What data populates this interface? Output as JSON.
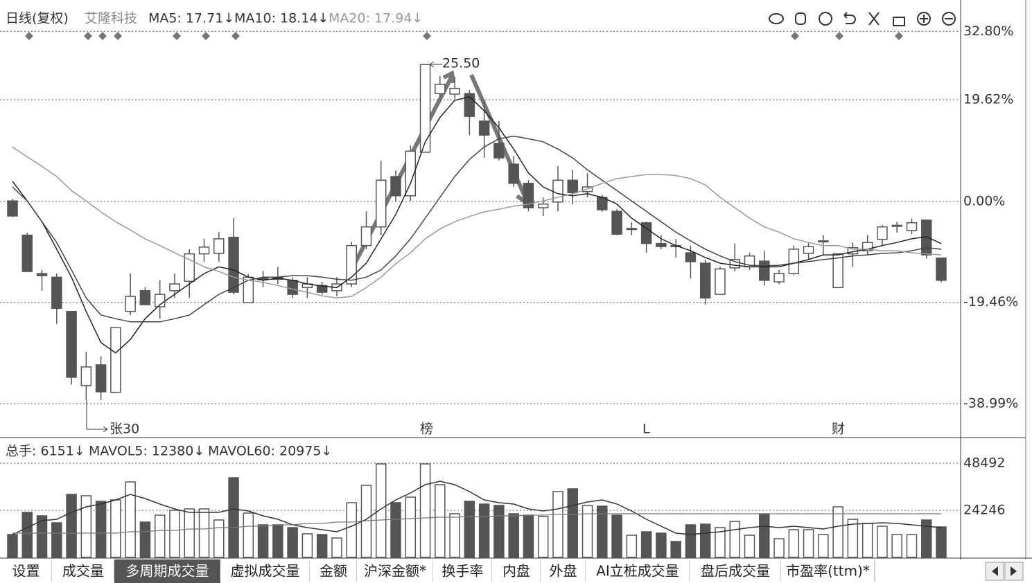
{
  "header": {
    "period": "日线(复权)",
    "stock": "艾隆科技",
    "ma5": "MA5: 17.71↓",
    "ma10": "MA10: 18.14↓",
    "ma20": "MA20: 17.94↓"
  },
  "price_axis": {
    "ylim": [
      -45.26,
      37.78
    ],
    "yticks": [
      {
        "value": 32.8,
        "label": "32.80%"
      },
      {
        "value": 19.62,
        "label": "19.62%"
      },
      {
        "value": 0,
        "label": "0.00%"
      },
      {
        "value": -19.46,
        "label": "-19.46%"
      },
      {
        "value": -38.99,
        "label": "-38.99%"
      }
    ]
  },
  "candles": {
    "open": [
      0.1,
      -6.5,
      -13.9,
      -14.6,
      -21.2,
      -35.5,
      -31.5,
      -36.8,
      -21.2,
      -17.2,
      -20.3,
      -17.2,
      -15.4,
      -10.1,
      -10,
      -6.9,
      -19.5,
      -14.8,
      -14.6,
      -15.2,
      -16.6,
      -16.2,
      -17.2,
      -15.9,
      -8.5,
      -4.9,
      4.8,
      1.1,
      9.5,
      20.8,
      20.7,
      20.8,
      15.5,
      11.2,
      7.2,
      3.5,
      -1.2,
      -0.1,
      4.1,
      1.9,
      0.8,
      -1.9,
      -5.3,
      -4.1,
      -8.1,
      -8.5,
      -9.9,
      -11.9,
      -17.9,
      -12.8,
      -12.6,
      -11.5,
      -15.5,
      -13.9,
      -10,
      -7.7,
      -16.6,
      -10.1,
      -9.5,
      -7.3,
      -4.7,
      -5.6,
      -3.6,
      -10.9
    ],
    "close": [
      -2.8,
      -13.5,
      -14.3,
      -20.6,
      -33.9,
      -31.9,
      -36.7,
      -24.3,
      -18.3,
      -19.9,
      -17.9,
      -15.9,
      -10.1,
      -8.8,
      -7.2,
      -17.5,
      -14.6,
      -15.1,
      -15,
      -17.9,
      -15.9,
      -17.5,
      -15.9,
      -8.5,
      -4.9,
      4.1,
      1.1,
      9.7,
      26.4,
      22.6,
      21.8,
      16.4,
      12.8,
      8.4,
      3.5,
      -1.2,
      -0.5,
      4.1,
      1.7,
      2.8,
      -1.6,
      -6.3,
      -5.2,
      -8.1,
      -8.7,
      -8.6,
      -11.6,
      -18.6,
      -13,
      -11.2,
      -10.5,
      -15.2,
      -13.9,
      -9.2,
      -8.7,
      -7.6,
      -10.1,
      -8.9,
      -7.9,
      -4.9,
      -4.6,
      -4.1,
      -10.3,
      -15.2
    ],
    "high": [
      0.5,
      -6,
      -13.2,
      -13.9,
      -21.2,
      -29,
      -29.9,
      -24.3,
      -13.9,
      -16.5,
      -15.2,
      -13.9,
      -9.2,
      -7.2,
      -5.9,
      -3.2,
      -14,
      -13.4,
      -12.6,
      -14.6,
      -14.6,
      -15.5,
      -14.6,
      -7.8,
      -1.9,
      7.9,
      6,
      10.8,
      26.4,
      24.2,
      24,
      21.5,
      19.5,
      15.5,
      8.8,
      4.1,
      0.8,
      6.8,
      6.1,
      5.5,
      1.3,
      -1.5,
      -4,
      -3.9,
      -6.5,
      -7.2,
      -8.5,
      -11.2,
      -12.6,
      -8.1,
      -9.9,
      -9.5,
      -13.2,
      -8.5,
      -7.9,
      -6.5,
      -10,
      -7.9,
      -6.5,
      -4.5,
      -3.9,
      -3.3,
      -3.6,
      -10.9
    ],
    "low": [
      -3,
      -13.5,
      -17.2,
      -23.6,
      -35.3,
      -38.3,
      -38.3,
      -36.8,
      -21.9,
      -20,
      -22.6,
      -18.6,
      -18.6,
      -11.6,
      -11.6,
      -17.9,
      -19.5,
      -16.5,
      -15.9,
      -18.6,
      -18.6,
      -18,
      -18.3,
      -16.5,
      -9.2,
      -6.5,
      0,
      0.1,
      9.5,
      20.2,
      19.8,
      12.8,
      8.4,
      7.9,
      2.8,
      -1.9,
      -2.8,
      -1.9,
      -0.5,
      0.8,
      -2,
      -6.5,
      -6.5,
      -9.9,
      -9.2,
      -10.8,
      -14.8,
      -19.9,
      -17.9,
      -13.5,
      -13.2,
      -16.2,
      -15.9,
      -14.2,
      -11.2,
      -10.3,
      -16.6,
      -12.6,
      -10.3,
      -8.5,
      -6,
      -6.3,
      -11,
      -15.6
    ]
  },
  "ma_lines": [
    {
      "color": "#222",
      "values": [
        3.9,
        0.1,
        -3.9,
        -9.2,
        -14.6,
        -21.2,
        -27.2,
        -29.2,
        -26.6,
        -22.6,
        -19.9,
        -17.9,
        -15.9,
        -13.9,
        -12.6,
        -13.2,
        -14.6,
        -15.2,
        -14.8,
        -15.2,
        -15.9,
        -16.3,
        -16.6,
        -14.6,
        -11.9,
        -7.2,
        -2.5,
        3.5,
        11.5,
        16.2,
        19.5,
        20.2,
        17.5,
        14.2,
        10.1,
        5.5,
        2.8,
        1.5,
        1.1,
        1.5,
        0.8,
        -0.5,
        -3.2,
        -5.2,
        -7.2,
        -8.5,
        -9.5,
        -10.8,
        -11.9,
        -12.3,
        -12.6,
        -12.6,
        -12.6,
        -11.9,
        -11.2,
        -10.3,
        -10.3,
        -9.7,
        -9.2,
        -8.5,
        -7.9,
        -7.2,
        -6.8,
        -8.1
      ]
    },
    {
      "color": "#444",
      "values": [
        2.8,
        0.1,
        -3.9,
        -7.9,
        -13.2,
        -18.6,
        -21.9,
        -22.6,
        -23.2,
        -23.2,
        -23.2,
        -22.6,
        -21.9,
        -19.9,
        -17.9,
        -16.6,
        -15.2,
        -14.6,
        -14.6,
        -14.3,
        -14.3,
        -14.6,
        -15,
        -15.2,
        -14.6,
        -13.2,
        -10.5,
        -7.2,
        -3.2,
        0.8,
        4.8,
        8.1,
        10.5,
        12.1,
        12.6,
        12.1,
        11.5,
        10.1,
        8.4,
        6.1,
        4.1,
        2.1,
        0.1,
        -1.9,
        -3.9,
        -5.9,
        -7.6,
        -9.2,
        -10.5,
        -11.6,
        -12.3,
        -12.4,
        -12.3,
        -11.9,
        -11.6,
        -11.2,
        -10.9,
        -10.5,
        -10.3,
        -10,
        -9.9,
        -9.5,
        -8.9,
        -9.2
      ]
    },
    {
      "color": "#999",
      "values": [
        10.5,
        8.6,
        6.8,
        4.8,
        2.1,
        0.1,
        -2,
        -3.9,
        -5.5,
        -7.2,
        -8.5,
        -9.9,
        -11.2,
        -12.6,
        -13.5,
        -14.6,
        -15.2,
        -15.6,
        -16.2,
        -16.9,
        -17.5,
        -18.2,
        -18.6,
        -18.3,
        -16.6,
        -14.6,
        -12,
        -9.9,
        -7.2,
        -5.3,
        -3.9,
        -2.9,
        -2,
        -1.5,
        -0.9,
        -0.5,
        0.1,
        0.8,
        1.5,
        2.4,
        3.5,
        4.4,
        4.8,
        5.2,
        5.2,
        5,
        4.4,
        3.2,
        0.8,
        -1.2,
        -3.2,
        -4.9,
        -5.9,
        -7.2,
        -7.9,
        -8.5,
        -8.5,
        -9.2,
        -9.2,
        -9.5,
        -9.5,
        -9.9,
        -10.1,
        -10.3
      ]
    }
  ],
  "annotations": {
    "high": "25.50",
    "a1": "张30",
    "a2": "榜",
    "a3": "L",
    "a4": "财"
  },
  "volume": {
    "header": {
      "total": "总手: 6151↓",
      "mavol5": "MAVOL5: 12380↓",
      "mavol60": "MAVOL60: 20975↓"
    },
    "ylim": [
      0,
      58839
    ],
    "yticks": [
      48492,
      24246
    ],
    "values": [
      11768,
      23179,
      21396,
      17830,
      32451,
      31737,
      28885,
      29598,
      38869,
      18187,
      21753,
      24249,
      24962,
      24962,
      19256,
      41009,
      22822,
      16760,
      16760,
      15334,
      12124,
      11768,
      9985,
      28171,
      37086,
      48141,
      28171,
      31024,
      48141,
      37443,
      22466,
      28885,
      27458,
      26745,
      22466,
      21753,
      21039,
      33877,
      35303,
      26745,
      26388,
      21753,
      11411,
      13194,
      12481,
      8202,
      16760,
      17117,
      15334,
      18543,
      11411,
      22466,
      9628,
      14264,
      14264,
      11768,
      26032,
      19613,
      17473,
      16047,
      11768,
      11768,
      19256,
      15690
    ],
    "mavol5": [
      11768,
      15334,
      18900,
      19613,
      23179,
      26032,
      27458,
      29598,
      32451,
      30311,
      27458,
      24962,
      23179,
      23179,
      23179,
      24962,
      23892,
      21396,
      19613,
      16760,
      15334,
      14264,
      13194,
      16047,
      19613,
      24962,
      29598,
      33164,
      37443,
      39226,
      37443,
      33877,
      29598,
      28171,
      27458,
      24962,
      23892,
      24962,
      26745,
      28528,
      29598,
      27458,
      23892,
      19613,
      16047,
      12481,
      11768,
      12481,
      13194,
      14264,
      15334,
      16047,
      15334,
      16047,
      15334,
      14621,
      16047,
      17117,
      17473,
      17830,
      17473,
      16760,
      16047,
      15334
    ],
    "mavol60": [
      12481,
      12481,
      12481,
      12481,
      12481,
      12481,
      12481,
      12481,
      13194,
      13194,
      13907,
      13907,
      14621,
      14621,
      15334,
      15334,
      16047,
      16047,
      16760,
      16760,
      17473,
      17473,
      18187,
      18187,
      18900,
      19256,
      19613,
      19970,
      20327,
      20684,
      20684,
      21039,
      21039,
      21396,
      21396,
      21753,
      21753,
      22110,
      22110,
      22466,
      22466,
      22466,
      22466,
      22466,
      22466,
      22466,
      22466,
      22466,
      22466,
      22466,
      22466,
      22466,
      22466,
      22466,
      22466,
      22466,
      22466,
      22466,
      22466,
      22466,
      22466,
      22466,
      22466,
      22466
    ]
  },
  "tabs": [
    "设置",
    "成交量",
    "多周期成交量",
    "虚拟成交量",
    "金额",
    "沪深金额*",
    "换手率",
    "内盘",
    "外盘",
    "AI立桩成交量",
    "盘后成交量",
    "市盈率(ttm)*"
  ],
  "tab_active": 2
}
